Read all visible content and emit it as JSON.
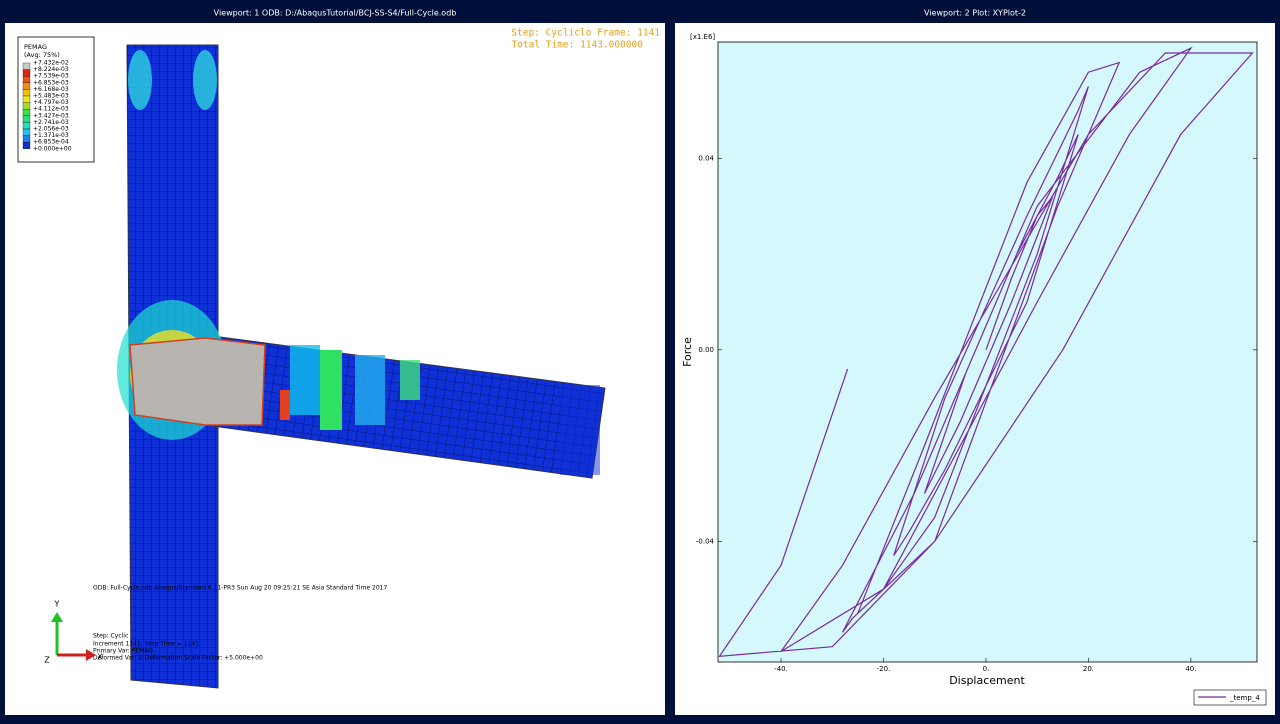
{
  "viewport1": {
    "header": "Viewport: 1     ODB: D:/AbaqusTutorial/BCJ-SS-S4/Full-Cycle.odb",
    "legend": {
      "title": "PEMAG",
      "subtitle": "(Avg: 75%)",
      "labels": [
        "+7.432e-02",
        "+8.224e-03",
        "+7.539e-03",
        "+6.853e-03",
        "+6.168e-03",
        "+5.483e-03",
        "+4.797e-03",
        "+4.112e-03",
        "+3.427e-03",
        "+2.741e-03",
        "+2.056e-03",
        "+1.371e-03",
        "+6.853e-04",
        "+0.000e+00"
      ]
    },
    "step": "Step: Cycliclo Frame: 1141",
    "time": "Total Time: 1143.000000",
    "info": [
      "ODB: Full-Cycle.odb    Abaqus/Standard 6.11-PR3    Sun Aug 20 09:25:21 SE Asia Standard Time 2017",
      "Step: Cyclic",
      "Increment  1141: Step Time = 1141.",
      "Primary Var: PEMAG",
      "Deformed Var: U   Deformation Scale Factor: +5.000e+00"
    ],
    "triad": [
      "Y",
      "Z",
      "X"
    ]
  },
  "viewport2": {
    "header": "Viewport: 2     Plot: XYPlot-2"
  },
  "chart_data": {
    "type": "line",
    "xlabel": "Displacement",
    "ylabel": "Force",
    "y_multiplier": "[x1.E6]",
    "xlim": [
      -52.3,
      52.9
    ],
    "ylim": [
      -0.0652,
      0.0643
    ],
    "xticks": [
      {
        "value": -40,
        "label": "-40."
      },
      {
        "value": -20,
        "label": "-20."
      },
      {
        "value": 0,
        "label": "0."
      },
      {
        "value": 20,
        "label": "20."
      },
      {
        "value": 40,
        "label": "40."
      }
    ],
    "yticks": [
      -0.04,
      {
        "value": 0,
        "label": "0.00"
      },
      0.04
    ],
    "x": [
      0,
      5,
      10,
      13,
      5,
      -5,
      -12,
      -4,
      6,
      14,
      18,
      8,
      -8,
      -15,
      -18,
      -8,
      8,
      18,
      20,
      10,
      -10,
      -20,
      -25,
      -12,
      8,
      20,
      26,
      14,
      -10,
      -26,
      -28,
      -14,
      10,
      30,
      40,
      28,
      10,
      -20,
      -40,
      -28,
      -10,
      20,
      35,
      52,
      38,
      15,
      -10,
      -30,
      -52,
      -40,
      -27
    ],
    "series": [
      {
        "name": "_temp_4",
        "color": "#7a2a9a",
        "values": [
          0,
          0.015,
          0.028,
          0.032,
          0.01,
          -0.015,
          -0.03,
          -0.005,
          0.02,
          0.036,
          0.045,
          0.01,
          -0.025,
          -0.038,
          -0.043,
          -0.01,
          0.028,
          0.05,
          0.055,
          0.02,
          -0.035,
          -0.05,
          -0.055,
          -0.02,
          0.035,
          0.058,
          0.06,
          0.03,
          -0.04,
          -0.056,
          -0.059,
          -0.03,
          0.03,
          0.058,
          0.063,
          0.045,
          0.01,
          -0.05,
          -0.063,
          -0.045,
          -0.01,
          0.045,
          0.062,
          0.062,
          0.045,
          0,
          -0.04,
          -0.062,
          -0.064,
          -0.045,
          -0.004
        ]
      }
    ],
    "background": "#d4f8fb"
  }
}
